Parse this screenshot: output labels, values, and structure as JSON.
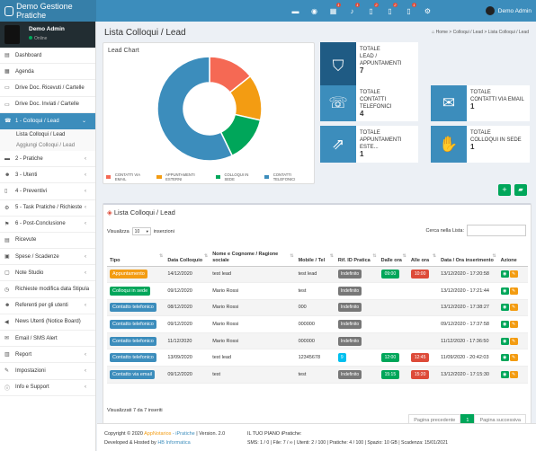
{
  "app": {
    "title": "Demo Gestione Pratiche",
    "user": "Demo Admin",
    "status": "Online"
  },
  "topbar": {
    "icons": [
      {
        "icon": "folder-icon",
        "badge": ""
      },
      {
        "icon": "eye-icon",
        "badge": ""
      },
      {
        "icon": "calendar-icon",
        "badge": "1"
      },
      {
        "icon": "bell-icon",
        "badge": "1"
      },
      {
        "icon": "file-icon",
        "badge": "2"
      },
      {
        "icon": "file-alt-icon",
        "badge": "2"
      },
      {
        "icon": "file-check-icon",
        "badge": "1"
      },
      {
        "icon": "gear-icon",
        "badge": ""
      }
    ]
  },
  "sidebar": {
    "items": [
      {
        "label": "Dashboard",
        "icon": "chart-icon",
        "chevron": false
      },
      {
        "label": "Agenda",
        "icon": "calendar-icon",
        "chevron": false
      },
      {
        "label": "Drive Doc. Ricevuti / Cartelle",
        "icon": "drive-icon",
        "chevron": false
      },
      {
        "label": "Drive Doc. Inviati / Cartelle",
        "icon": "drive-icon",
        "chevron": false
      },
      {
        "label": "1 - Colloqui / Lead",
        "icon": "phone-icon",
        "chevron": true,
        "active": true
      },
      {
        "label": "2 - Pratiche",
        "icon": "folder-icon",
        "chevron": true
      },
      {
        "label": "3 - Utenti",
        "icon": "users-icon",
        "chevron": true
      },
      {
        "label": "4 - Preventivi",
        "icon": "file-icon",
        "chevron": true
      },
      {
        "label": "5 - Task Pratiche / Richieste",
        "icon": "cogs-icon",
        "chevron": true
      },
      {
        "label": "6 - Post-Conclusione",
        "icon": "flag-icon",
        "chevron": true
      },
      {
        "label": "Ricevute",
        "icon": "receipt-icon",
        "chevron": false
      },
      {
        "label": "Spese / Scadenze",
        "icon": "money-icon",
        "chevron": true
      },
      {
        "label": "Note Studio",
        "icon": "note-icon",
        "chevron": true
      },
      {
        "label": "Richieste modifica data Stipula",
        "icon": "clock-icon",
        "chevron": false
      },
      {
        "label": "Referenti per gli utenti",
        "icon": "user-icon",
        "chevron": true
      },
      {
        "label": "News Utenti (Notice Board)",
        "icon": "megaphone-icon",
        "chevron": false
      },
      {
        "label": "Email / SMS Alert",
        "icon": "envelope-icon",
        "chevron": false
      },
      {
        "label": "Report",
        "icon": "report-icon",
        "chevron": true
      },
      {
        "label": "Impostazioni",
        "icon": "wrench-icon",
        "chevron": true
      },
      {
        "label": "Info e Support",
        "icon": "info-icon",
        "chevron": true
      }
    ],
    "sub_items": [
      "Lista Colloqui / Lead",
      "Aggiungi Colloqui / Lead"
    ]
  },
  "page": {
    "title": "Lista Colloqui / Lead",
    "breadcrumb": [
      "Home",
      "Colloqui / Lead",
      "Lista Colloqui / Lead"
    ]
  },
  "chart_data": {
    "type": "pie",
    "title": "Lead Chart",
    "categories": [
      "CONTATTI VIA EMAIL",
      "APPUNTAMENTI ESTERNI",
      "COLLOQUI IN SEDE",
      "CONTATTI TELEFONICI"
    ],
    "values": [
      1,
      1,
      1,
      4
    ],
    "colors": [
      "#f56954",
      "#f39c12",
      "#00a65a",
      "#3c8dbc"
    ],
    "legend": "bottom"
  },
  "stats": [
    {
      "title": "TOTALE",
      "label": "LEAD / APPUNTAMENTI",
      "value": "7",
      "icon": "bookmark-icon"
    },
    {
      "title": "TOTALE",
      "label": "CONTATTI TELEFONICI",
      "value": "4",
      "icon": "phone-volume-icon"
    },
    {
      "title": "TOTALE",
      "label": "CONTATTI VIA EMAIL",
      "value": "1",
      "icon": "envelope-icon"
    },
    {
      "title": "TOTALE",
      "label": "APPUNTAMENTI ESTE...",
      "value": "1",
      "icon": "external-link-icon"
    },
    {
      "title": "TOTALE",
      "label": "COLLOQUI IN SEDE",
      "value": "1",
      "icon": "handshake-icon"
    }
  ],
  "list": {
    "title": "Lista Colloqui / Lead",
    "show_label": "Visualizza",
    "show_value": "10",
    "entries_label": "inserzioni",
    "search_label": "Cerca nella Lista:",
    "search_value": "",
    "columns": [
      "Tipo",
      "Data Colloquio",
      "Nome e Cognome / Ragione sociale",
      "Mobile / Tel",
      "Rif. ID Pratica",
      "Dalle ora",
      "Alle ora",
      "Data / Ora inserimento",
      "Azione"
    ],
    "rows": [
      {
        "tipo": "Appuntamento",
        "color": "#f39c12",
        "data": "14/12/2020",
        "nome": "test lead",
        "tel": "test lead",
        "rif": "Indefinito",
        "rif_color": "#777",
        "dalle": "09:00",
        "alle": "10:00",
        "ins": "13/12/2020 - 17:20:58"
      },
      {
        "tipo": "Colloqui in sede",
        "color": "#00a65a",
        "data": "09/12/2020",
        "nome": "Mario Rossi",
        "tel": "test",
        "rif": "Indefinito",
        "rif_color": "#777",
        "dalle": "",
        "alle": "",
        "ins": "13/12/2020 - 17:21:44"
      },
      {
        "tipo": "Contatto telefonico",
        "color": "#3c8dbc",
        "data": "08/12/2020",
        "nome": "Mario Rossi",
        "tel": "000",
        "rif": "Indefinito",
        "rif_color": "#777",
        "dalle": "",
        "alle": "",
        "ins": "13/12/2020 - 17:38:27"
      },
      {
        "tipo": "Contatto telefonico",
        "color": "#3c8dbc",
        "data": "09/12/2020",
        "nome": "Mario Rossi",
        "tel": "000000",
        "rif": "Indefinito",
        "rif_color": "#777",
        "dalle": "",
        "alle": "",
        "ins": "09/12/2020 - 17:37:58"
      },
      {
        "tipo": "Contatto telefonico",
        "color": "#3c8dbc",
        "data": "11/12/2020",
        "nome": "Mario Rossi",
        "tel": "000000",
        "rif": "Indefinito",
        "rif_color": "#777",
        "dalle": "",
        "alle": "",
        "ins": "11/12/2020 - 17:36:50"
      },
      {
        "tipo": "Contatto telefonico",
        "color": "#3c8dbc",
        "data": "13/09/2020",
        "nome": "test lead",
        "tel": "12345678",
        "rif": "9",
        "rif_color": "#00c0ef",
        "dalle": "12:00",
        "alle": "12:45",
        "ins": "11/09/2020 - 20:42:03"
      },
      {
        "tipo": "Contatto via email",
        "color": "#3c8dbc",
        "data": "09/12/2020",
        "nome": "test",
        "tel": "test",
        "rif": "Indefinito",
        "rif_color": "#777",
        "dalle": "15:15",
        "alle": "15:20",
        "ins": "13/12/2020 - 17:15:30"
      }
    ],
    "info": "Visualizzati 7 da 7 inseriti",
    "pager": {
      "prev": "Pagina precedente",
      "current": "1",
      "next": "Pagina successiva"
    }
  },
  "footer": {
    "copyright": "Copyright © 2020",
    "brand1": "App",
    "brand2": "Notarios",
    "brand3": " - iPratiche",
    "version": "| Version. 2.0",
    "developed": "Developed & Hosted by",
    "company": "HB Informatica",
    "plan": "IL TUO PIANO iPratiche:",
    "usage": "SMS: 1 / 0 | File: 7 / ∞ | Utenti: 2 / 100 | Pratiche: 4 / 100 | Spazio: 10 GB | Scadenza: 15/01/2021"
  }
}
